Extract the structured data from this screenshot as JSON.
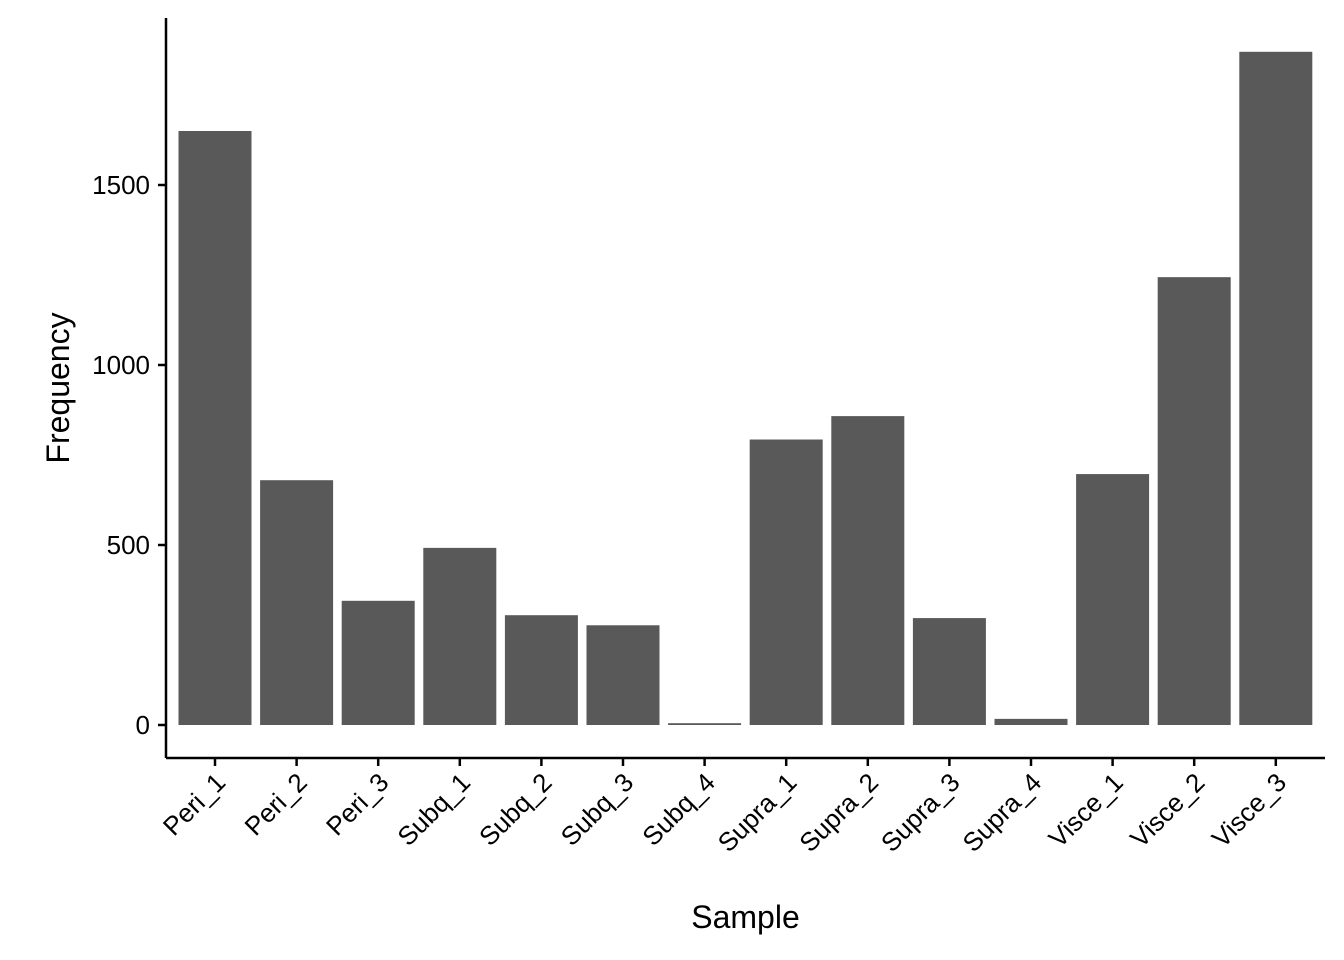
{
  "chart_data": {
    "type": "bar",
    "title": "",
    "xlabel": "Sample",
    "ylabel": "Frequency",
    "categories": [
      "Peri_1",
      "Peri_2",
      "Peri_3",
      "Subq_1",
      "Subq_2",
      "Subq_3",
      "Subq_4",
      "Supra_1",
      "Supra_2",
      "Supra_3",
      "Supra_4",
      "Visce_1",
      "Visce_2",
      "Visce_3"
    ],
    "values": [
      1650,
      680,
      345,
      492,
      305,
      277,
      5,
      793,
      858,
      297,
      17,
      697,
      1244,
      1870
    ],
    "ylim": [
      0,
      1870
    ],
    "yticks": [
      0,
      500,
      1000,
      1500
    ],
    "bar_color": "#595959",
    "grid": false,
    "legend": "none"
  }
}
